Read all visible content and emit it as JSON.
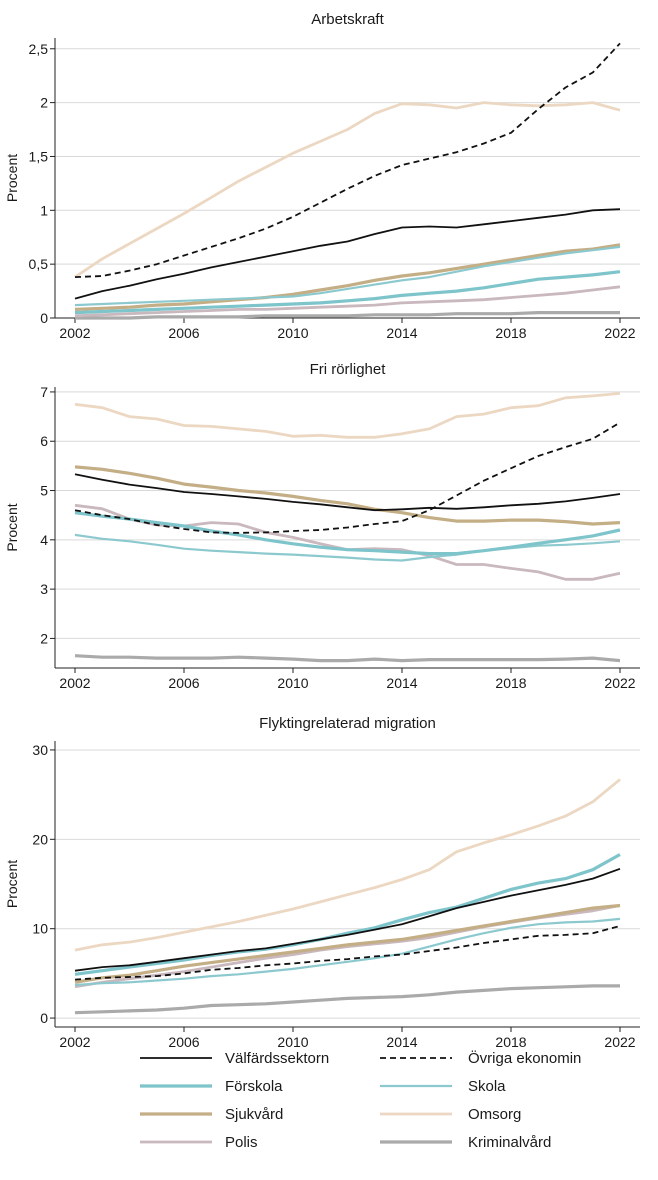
{
  "chart_data": [
    {
      "type": "line",
      "title": "Arbetskraft",
      "xlabel": "",
      "ylabel": "Procent",
      "xlim": [
        2002,
        2022
      ],
      "ylim": [
        0,
        2.6
      ],
      "xticks": [
        2002,
        2006,
        2010,
        2014,
        2018,
        2022
      ],
      "yticks": [
        0,
        0.5,
        1,
        1.5,
        2,
        2.5
      ],
      "ytick_labels": [
        "0",
        "0,5",
        "1",
        "1,5",
        "2",
        "2,5"
      ],
      "x": [
        2002,
        2003,
        2004,
        2005,
        2006,
        2007,
        2008,
        2009,
        2010,
        2011,
        2012,
        2013,
        2014,
        2015,
        2016,
        2017,
        2018,
        2019,
        2020,
        2021,
        2022
      ],
      "series": [
        {
          "key": "valfard",
          "values": [
            0.18,
            0.25,
            0.3,
            0.36,
            0.41,
            0.47,
            0.52,
            0.57,
            0.62,
            0.67,
            0.71,
            0.78,
            0.84,
            0.85,
            0.84,
            0.87,
            0.9,
            0.93,
            0.96,
            1.0,
            1.01
          ]
        },
        {
          "key": "ovriga",
          "values": [
            0.38,
            0.39,
            0.44,
            0.5,
            0.58,
            0.66,
            0.74,
            0.83,
            0.94,
            1.07,
            1.2,
            1.32,
            1.42,
            1.48,
            1.54,
            1.62,
            1.72,
            1.94,
            2.14,
            2.28,
            2.55
          ]
        },
        {
          "key": "forskola",
          "values": [
            0.05,
            0.06,
            0.07,
            0.08,
            0.09,
            0.1,
            0.11,
            0.12,
            0.13,
            0.14,
            0.16,
            0.18,
            0.21,
            0.23,
            0.25,
            0.28,
            0.32,
            0.36,
            0.38,
            0.4,
            0.43
          ]
        },
        {
          "key": "skola",
          "values": [
            0.12,
            0.13,
            0.14,
            0.15,
            0.16,
            0.17,
            0.18,
            0.19,
            0.2,
            0.23,
            0.27,
            0.31,
            0.35,
            0.38,
            0.43,
            0.48,
            0.52,
            0.56,
            0.6,
            0.63,
            0.66
          ]
        },
        {
          "key": "sjukvard",
          "values": [
            0.08,
            0.09,
            0.1,
            0.12,
            0.13,
            0.15,
            0.17,
            0.19,
            0.22,
            0.26,
            0.3,
            0.35,
            0.39,
            0.42,
            0.46,
            0.5,
            0.54,
            0.58,
            0.62,
            0.64,
            0.68
          ]
        },
        {
          "key": "omsorg",
          "values": [
            0.38,
            0.55,
            0.69,
            0.83,
            0.97,
            1.12,
            1.27,
            1.4,
            1.53,
            1.64,
            1.75,
            1.9,
            1.99,
            1.98,
            1.95,
            2.0,
            1.98,
            1.97,
            1.98,
            2.0,
            1.93
          ]
        },
        {
          "key": "polis",
          "values": [
            0.02,
            0.03,
            0.04,
            0.05,
            0.06,
            0.07,
            0.08,
            0.08,
            0.09,
            0.1,
            0.11,
            0.12,
            0.14,
            0.15,
            0.16,
            0.17,
            0.19,
            0.21,
            0.23,
            0.26,
            0.29
          ]
        },
        {
          "key": "kriminal",
          "values": [
            0.0,
            0.0,
            0.0,
            0.01,
            0.01,
            0.01,
            0.01,
            0.02,
            0.02,
            0.02,
            0.02,
            0.03,
            0.03,
            0.03,
            0.04,
            0.04,
            0.04,
            0.05,
            0.05,
            0.05,
            0.05
          ]
        }
      ]
    },
    {
      "type": "line",
      "title": "Fri rörlighet",
      "xlabel": "",
      "ylabel": "Procent",
      "xlim": [
        2002,
        2022
      ],
      "ylim": [
        1.4,
        7.1
      ],
      "xticks": [
        2002,
        2006,
        2010,
        2014,
        2018,
        2022
      ],
      "yticks": [
        2,
        3,
        4,
        5,
        6,
        7
      ],
      "ytick_labels": [
        "2",
        "3",
        "4",
        "5",
        "6",
        "7"
      ],
      "x": [
        2002,
        2003,
        2004,
        2005,
        2006,
        2007,
        2008,
        2009,
        2010,
        2011,
        2012,
        2013,
        2014,
        2015,
        2016,
        2017,
        2018,
        2019,
        2020,
        2021,
        2022
      ],
      "series": [
        {
          "key": "valfard",
          "values": [
            5.33,
            5.22,
            5.12,
            5.05,
            4.97,
            4.93,
            4.88,
            4.83,
            4.77,
            4.72,
            4.66,
            4.6,
            4.62,
            4.65,
            4.63,
            4.66,
            4.7,
            4.73,
            4.78,
            4.85,
            4.93
          ]
        },
        {
          "key": "ovriga",
          "values": [
            4.6,
            4.5,
            4.42,
            4.3,
            4.22,
            4.15,
            4.14,
            4.15,
            4.18,
            4.2,
            4.25,
            4.32,
            4.38,
            4.6,
            4.9,
            5.2,
            5.45,
            5.7,
            5.88,
            6.05,
            6.38
          ]
        },
        {
          "key": "forskola",
          "values": [
            4.55,
            4.48,
            4.42,
            4.35,
            4.28,
            4.18,
            4.1,
            4.0,
            3.92,
            3.85,
            3.8,
            3.78,
            3.75,
            3.72,
            3.72,
            3.78,
            3.85,
            3.93,
            4.0,
            4.08,
            4.2
          ]
        },
        {
          "key": "skola",
          "values": [
            4.1,
            4.02,
            3.97,
            3.9,
            3.82,
            3.78,
            3.75,
            3.72,
            3.7,
            3.67,
            3.64,
            3.6,
            3.58,
            3.65,
            3.7,
            3.78,
            3.83,
            3.88,
            3.9,
            3.93,
            3.97
          ]
        },
        {
          "key": "sjukvard",
          "values": [
            5.48,
            5.43,
            5.35,
            5.25,
            5.13,
            5.07,
            5.0,
            4.95,
            4.88,
            4.8,
            4.73,
            4.62,
            4.55,
            4.45,
            4.38,
            4.38,
            4.4,
            4.4,
            4.37,
            4.32,
            4.35
          ]
        },
        {
          "key": "omsorg",
          "values": [
            6.75,
            6.68,
            6.5,
            6.45,
            6.32,
            6.3,
            6.25,
            6.2,
            6.1,
            6.12,
            6.08,
            6.08,
            6.15,
            6.25,
            6.5,
            6.55,
            6.68,
            6.72,
            6.88,
            6.92,
            6.97
          ]
        },
        {
          "key": "polis",
          "values": [
            4.7,
            4.63,
            4.42,
            4.3,
            4.28,
            4.35,
            4.32,
            4.15,
            4.05,
            3.92,
            3.8,
            3.82,
            3.8,
            3.68,
            3.5,
            3.5,
            3.42,
            3.35,
            3.2,
            3.2,
            3.32
          ]
        },
        {
          "key": "kriminal",
          "values": [
            1.65,
            1.62,
            1.62,
            1.6,
            1.6,
            1.6,
            1.62,
            1.6,
            1.58,
            1.55,
            1.55,
            1.58,
            1.55,
            1.57,
            1.57,
            1.57,
            1.57,
            1.57,
            1.58,
            1.6,
            1.55
          ]
        }
      ]
    },
    {
      "type": "line",
      "title": "Flyktingrelaterad migration",
      "xlabel": "",
      "ylabel": "Procent",
      "xlim": [
        2002,
        2022
      ],
      "ylim": [
        -1,
        31
      ],
      "xticks": [
        2002,
        2006,
        2010,
        2014,
        2018,
        2022
      ],
      "yticks": [
        0,
        10,
        20,
        30
      ],
      "ytick_labels": [
        "0",
        "10",
        "20",
        "30"
      ],
      "x": [
        2002,
        2003,
        2004,
        2005,
        2006,
        2007,
        2008,
        2009,
        2010,
        2011,
        2012,
        2013,
        2014,
        2015,
        2016,
        2017,
        2018,
        2019,
        2020,
        2021,
        2022
      ],
      "series": [
        {
          "key": "valfard",
          "values": [
            5.3,
            5.7,
            5.9,
            6.3,
            6.7,
            7.1,
            7.5,
            7.8,
            8.3,
            8.8,
            9.3,
            9.9,
            10.5,
            11.4,
            12.3,
            13.0,
            13.7,
            14.3,
            14.9,
            15.6,
            16.7
          ]
        },
        {
          "key": "ovriga",
          "values": [
            4.3,
            4.5,
            4.6,
            4.7,
            5.0,
            5.4,
            5.6,
            5.9,
            6.1,
            6.4,
            6.6,
            6.9,
            7.1,
            7.5,
            7.9,
            8.4,
            8.8,
            9.2,
            9.3,
            9.5,
            10.3
          ]
        },
        {
          "key": "forskola",
          "values": [
            4.9,
            5.3,
            5.7,
            6.1,
            6.5,
            7.0,
            7.4,
            7.7,
            8.2,
            8.8,
            9.5,
            10.1,
            11.0,
            11.8,
            12.4,
            13.4,
            14.4,
            15.1,
            15.6,
            16.6,
            18.3
          ]
        },
        {
          "key": "skola",
          "values": [
            3.7,
            3.9,
            4.0,
            4.2,
            4.4,
            4.7,
            4.9,
            5.2,
            5.5,
            5.9,
            6.3,
            6.7,
            7.2,
            8.0,
            8.8,
            9.5,
            10.1,
            10.5,
            10.7,
            10.8,
            11.1
          ]
        },
        {
          "key": "sjukvard",
          "values": [
            4.0,
            4.5,
            4.8,
            5.3,
            5.8,
            6.2,
            6.6,
            7.0,
            7.4,
            7.8,
            8.2,
            8.5,
            8.8,
            9.3,
            9.8,
            10.3,
            10.8,
            11.3,
            11.8,
            12.3,
            12.6
          ]
        },
        {
          "key": "omsorg",
          "values": [
            7.6,
            8.2,
            8.5,
            9.0,
            9.6,
            10.2,
            10.8,
            11.5,
            12.2,
            13.0,
            13.8,
            14.6,
            15.5,
            16.6,
            18.6,
            19.6,
            20.5,
            21.5,
            22.6,
            24.2,
            26.7
          ]
        },
        {
          "key": "polis",
          "values": [
            3.5,
            4.0,
            4.4,
            4.8,
            5.2,
            5.7,
            6.2,
            6.7,
            7.1,
            7.6,
            8.0,
            8.3,
            8.6,
            9.0,
            9.6,
            10.2,
            10.7,
            11.2,
            11.6,
            12.0,
            12.6
          ]
        },
        {
          "key": "kriminal",
          "values": [
            0.6,
            0.7,
            0.8,
            0.9,
            1.1,
            1.4,
            1.5,
            1.6,
            1.8,
            2.0,
            2.2,
            2.3,
            2.4,
            2.6,
            2.9,
            3.1,
            3.3,
            3.4,
            3.5,
            3.6,
            3.6
          ]
        }
      ]
    }
  ],
  "legend": {
    "items": [
      {
        "key": "valfard",
        "label": "Välfärdssektorn"
      },
      {
        "key": "ovriga",
        "label": "Övriga ekonomin"
      },
      {
        "key": "forskola",
        "label": "Förskola"
      },
      {
        "key": "skola",
        "label": "Skola"
      },
      {
        "key": "sjukvard",
        "label": "Sjukvård"
      },
      {
        "key": "omsorg",
        "label": "Omsorg"
      },
      {
        "key": "polis",
        "label": "Polis"
      },
      {
        "key": "kriminal",
        "label": "Kriminalvård"
      }
    ]
  },
  "series_styles": {
    "valfard": {
      "color": "#111111",
      "dash": ""
    },
    "ovriga": {
      "color": "#111111",
      "dash": "6,4"
    },
    "forskola": {
      "color": "#7ec4cb",
      "dash": ""
    },
    "skola": {
      "color": "#8cc9cf",
      "dash": ""
    },
    "sjukvard": {
      "color": "#c4ae86",
      "dash": ""
    },
    "omsorg": {
      "color": "#ecd8c2",
      "dash": ""
    },
    "polis": {
      "color": "#c9b8bd",
      "dash": ""
    },
    "kriminal": {
      "color": "#aaaaaa",
      "dash": ""
    }
  }
}
